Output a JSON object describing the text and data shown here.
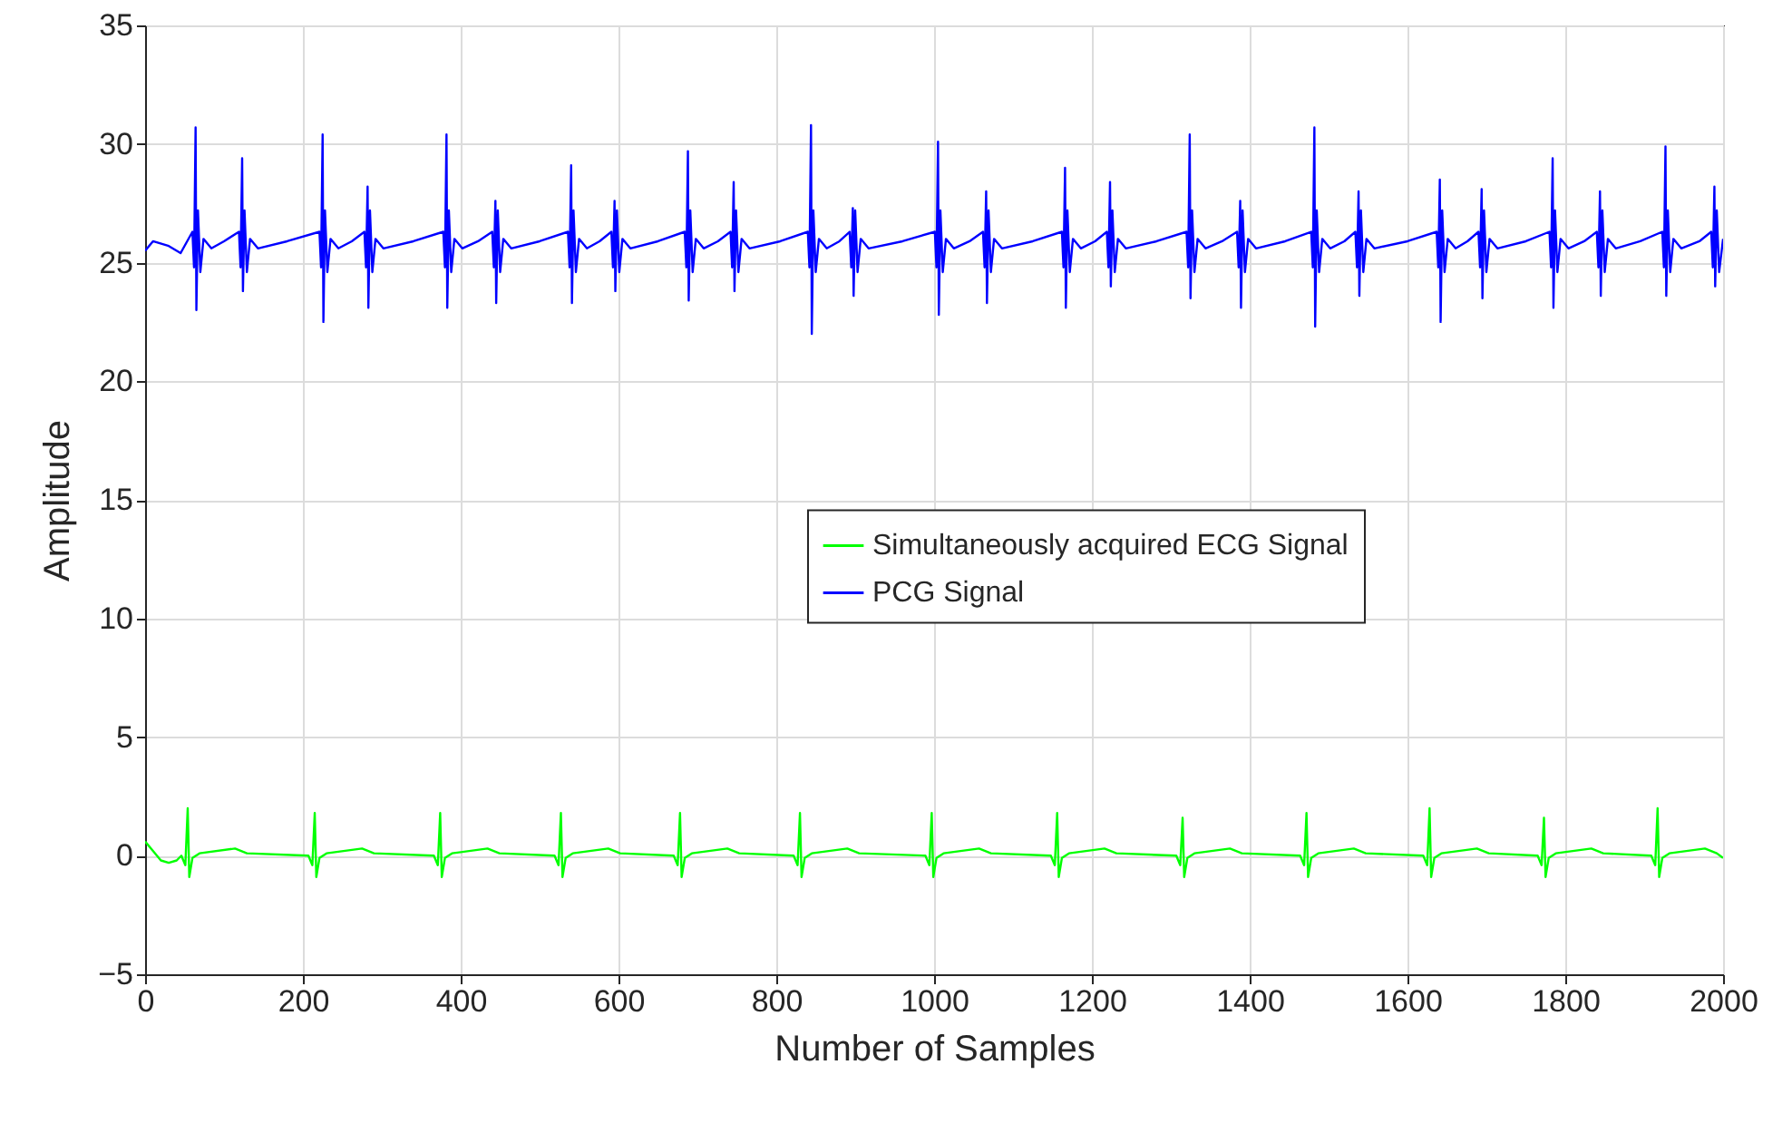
{
  "chart_data": {
    "type": "line",
    "xlabel": "Number of Samples",
    "ylabel": "Amplitude",
    "xlim": [
      0,
      2000
    ],
    "xticks": [
      0,
      200,
      400,
      600,
      800,
      1000,
      1200,
      1400,
      1600,
      1800,
      2000
    ],
    "ylim": [
      -5,
      35
    ],
    "yticks": [
      -5,
      0,
      5,
      10,
      15,
      20,
      25,
      30,
      35
    ],
    "grid": true,
    "legend": "right",
    "line_style": "solid",
    "marker": "none",
    "series": [
      {
        "name": "Simultaneously acquired ECG Signal",
        "color": "#00ff00",
        "x": [
          0,
          10,
          20,
          30,
          40,
          46,
          51,
          54,
          56,
          60,
          69,
          114,
          129,
          207,
          212,
          215,
          217,
          221,
          230,
          275,
          290,
          366,
          371,
          374,
          376,
          380,
          389,
          434,
          449,
          519,
          524,
          527,
          529,
          533,
          542,
          587,
          602,
          670,
          675,
          678,
          680,
          684,
          693,
          738,
          753,
          822,
          827,
          830,
          832,
          836,
          845,
          890,
          905,
          989,
          994,
          997,
          999,
          1003,
          1012,
          1057,
          1072,
          1148,
          1153,
          1156,
          1158,
          1162,
          1171,
          1216,
          1231,
          1307,
          1312,
          1315,
          1317,
          1321,
          1330,
          1375,
          1390,
          1464,
          1469,
          1472,
          1474,
          1478,
          1487,
          1532,
          1547,
          1620,
          1625,
          1628,
          1630,
          1634,
          1643,
          1688,
          1703,
          1765,
          1770,
          1773,
          1775,
          1779,
          1788,
          1833,
          1848,
          1909,
          1914,
          1917,
          1919,
          1923,
          1932,
          1977,
          1992,
          2000
        ],
        "values": [
          0.6,
          0.2,
          -0.2,
          -0.3,
          -0.2,
          0.0,
          -0.4,
          2.0,
          -0.9,
          -0.1,
          0.1,
          0.3,
          0.1,
          0.0,
          -0.4,
          1.8,
          -0.9,
          -0.1,
          0.1,
          0.3,
          0.1,
          0.0,
          -0.4,
          1.8,
          -0.9,
          -0.1,
          0.1,
          0.3,
          0.1,
          0.0,
          -0.4,
          1.8,
          -0.9,
          -0.1,
          0.1,
          0.3,
          0.1,
          0.0,
          -0.4,
          1.8,
          -0.9,
          -0.1,
          0.1,
          0.3,
          0.1,
          0.0,
          -0.4,
          1.8,
          -0.9,
          -0.1,
          0.1,
          0.3,
          0.1,
          0.0,
          -0.4,
          1.8,
          -0.9,
          -0.1,
          0.1,
          0.3,
          0.1,
          0.0,
          -0.4,
          1.8,
          -0.9,
          -0.1,
          0.1,
          0.3,
          0.1,
          0.0,
          -0.4,
          1.6,
          -0.9,
          -0.1,
          0.1,
          0.3,
          0.1,
          0.0,
          -0.4,
          1.8,
          -0.9,
          -0.1,
          0.1,
          0.3,
          0.1,
          0.0,
          -0.4,
          2.0,
          -0.9,
          -0.1,
          0.1,
          0.3,
          0.1,
          0.0,
          -0.4,
          1.6,
          -0.9,
          -0.1,
          0.1,
          0.3,
          0.1,
          0.0,
          -0.4,
          2.0,
          -0.9,
          -0.1,
          0.1,
          0.3,
          0.1,
          -0.1
        ]
      },
      {
        "name": "PCG Signal",
        "color": "#0000ff",
        "x": [
          0,
          10,
          30,
          45,
          60,
          62,
          64,
          65,
          67,
          70,
          74,
          84,
          100,
          119,
          121,
          123,
          124,
          126,
          129,
          133,
          143,
          180,
          221,
          223,
          225,
          226,
          228,
          231,
          235,
          245,
          262,
          278,
          280,
          282,
          283,
          285,
          288,
          292,
          302,
          340,
          378,
          380,
          382,
          383,
          385,
          388,
          392,
          402,
          422,
          440,
          442,
          444,
          445,
          447,
          450,
          454,
          464,
          500,
          536,
          538,
          540,
          541,
          543,
          546,
          550,
          560,
          576,
          591,
          593,
          595,
          596,
          598,
          601,
          605,
          615,
          650,
          684,
          686,
          688,
          689,
          691,
          694,
          698,
          708,
          726,
          742,
          744,
          746,
          747,
          749,
          752,
          756,
          766,
          805,
          840,
          842,
          844,
          845,
          847,
          850,
          854,
          864,
          880,
          893,
          895,
          897,
          898,
          900,
          903,
          907,
          917,
          960,
          1001,
          1003,
          1005,
          1006,
          1008,
          1011,
          1015,
          1025,
          1045,
          1062,
          1064,
          1066,
          1067,
          1069,
          1072,
          1076,
          1086,
          1125,
          1162,
          1164,
          1166,
          1167,
          1169,
          1172,
          1176,
          1186,
          1204,
          1219,
          1221,
          1223,
          1224,
          1226,
          1229,
          1233,
          1243,
          1282,
          1320,
          1322,
          1324,
          1325,
          1327,
          1330,
          1334,
          1344,
          1365,
          1384,
          1386,
          1388,
          1389,
          1391,
          1394,
          1398,
          1408,
          1445,
          1478,
          1480,
          1482,
          1483,
          1485,
          1488,
          1492,
          1502,
          1520,
          1534,
          1536,
          1538,
          1539,
          1541,
          1544,
          1548,
          1558,
          1600,
          1637,
          1639,
          1641,
          1642,
          1644,
          1647,
          1651,
          1661,
          1676,
          1690,
          1692,
          1694,
          1695,
          1697,
          1700,
          1704,
          1714,
          1750,
          1780,
          1782,
          1784,
          1785,
          1787,
          1790,
          1794,
          1804,
          1824,
          1840,
          1842,
          1844,
          1845,
          1847,
          1850,
          1854,
          1864,
          1895,
          1923,
          1925,
          1927,
          1928,
          1930,
          1933,
          1937,
          1947,
          1970,
          1985,
          1987,
          1989,
          1990,
          1992,
          1995,
          2000
        ],
        "values": [
          25.5,
          25.9,
          25.7,
          25.4,
          26.3,
          24.8,
          30.7,
          23.0,
          27.2,
          24.6,
          26.0,
          25.6,
          25.9,
          26.3,
          24.8,
          29.4,
          23.8,
          27.2,
          24.6,
          26.0,
          25.6,
          25.9,
          26.3,
          24.8,
          30.4,
          22.5,
          27.2,
          24.6,
          26.0,
          25.6,
          25.9,
          26.3,
          24.8,
          28.2,
          23.1,
          27.2,
          24.6,
          26.0,
          25.6,
          25.9,
          26.3,
          24.8,
          30.4,
          23.1,
          27.2,
          24.6,
          26.0,
          25.6,
          25.9,
          26.3,
          24.8,
          27.6,
          23.3,
          27.2,
          24.6,
          26.0,
          25.6,
          25.9,
          26.3,
          24.8,
          29.1,
          23.3,
          27.2,
          24.6,
          26.0,
          25.6,
          25.9,
          26.3,
          24.8,
          27.6,
          23.8,
          27.2,
          24.6,
          26.0,
          25.6,
          25.9,
          26.3,
          24.8,
          29.7,
          23.4,
          27.2,
          24.6,
          26.0,
          25.6,
          25.9,
          26.3,
          24.8,
          28.4,
          23.8,
          27.2,
          24.6,
          26.0,
          25.6,
          25.9,
          26.3,
          24.8,
          30.8,
          22.0,
          27.2,
          24.6,
          26.0,
          25.6,
          25.9,
          26.3,
          24.8,
          27.3,
          23.6,
          27.2,
          24.6,
          26.0,
          25.6,
          25.9,
          26.3,
          24.8,
          30.1,
          22.8,
          27.2,
          24.6,
          26.0,
          25.6,
          25.9,
          26.3,
          24.8,
          28.0,
          23.3,
          27.2,
          24.6,
          26.0,
          25.6,
          25.9,
          26.3,
          24.8,
          29.0,
          23.1,
          27.2,
          24.6,
          26.0,
          25.6,
          25.9,
          26.3,
          24.8,
          28.4,
          24.0,
          27.2,
          24.6,
          26.0,
          25.6,
          25.9,
          26.3,
          24.8,
          30.4,
          23.5,
          27.2,
          24.6,
          26.0,
          25.6,
          25.9,
          26.3,
          24.8,
          27.6,
          23.1,
          27.2,
          24.6,
          26.0,
          25.6,
          25.9,
          26.3,
          24.8,
          30.7,
          22.3,
          27.2,
          24.6,
          26.0,
          25.6,
          25.9,
          26.3,
          24.8,
          28.0,
          23.6,
          27.2,
          24.6,
          26.0,
          25.6,
          25.9,
          26.3,
          24.8,
          28.5,
          22.5,
          27.2,
          24.6,
          26.0,
          25.6,
          25.9,
          26.3,
          24.8,
          28.1,
          23.5,
          27.2,
          24.6,
          26.0,
          25.6,
          25.9,
          26.3,
          24.8,
          29.4,
          23.1,
          27.2,
          24.6,
          26.0,
          25.6,
          25.9,
          26.3,
          24.8,
          28.0,
          23.6,
          27.2,
          24.6,
          26.0,
          25.6,
          25.9,
          26.3,
          24.8,
          29.9,
          23.6,
          27.2,
          24.6,
          26.0,
          25.6,
          25.9,
          26.3,
          24.8,
          28.2,
          24.0,
          27.2,
          24.6,
          26.0
        ]
      }
    ]
  }
}
